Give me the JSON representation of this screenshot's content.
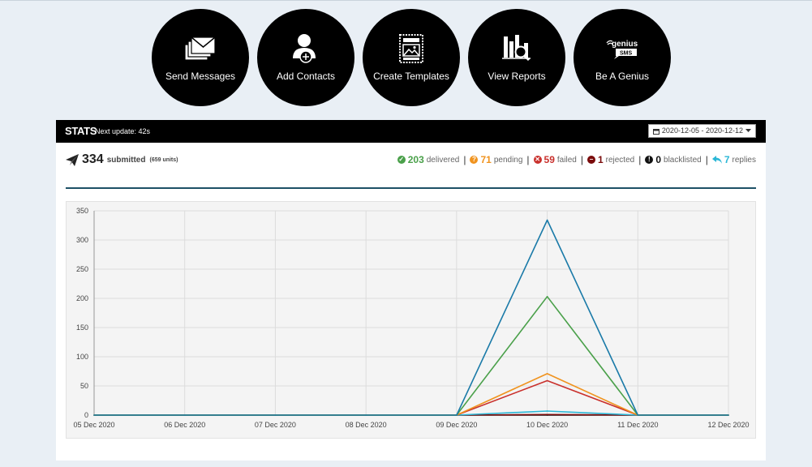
{
  "actions": [
    {
      "label": "Send Messages",
      "icon": "envelopes-icon"
    },
    {
      "label": "Add Contacts",
      "icon": "add-contact-icon"
    },
    {
      "label": "Create Templates",
      "icon": "template-icon"
    },
    {
      "label": "View Reports",
      "icon": "reports-icon"
    },
    {
      "label": "Be A Genius",
      "icon": "genius-sms-logo"
    }
  ],
  "genius_logo": {
    "line1": "genius",
    "line2": "SMS"
  },
  "stats": {
    "title": "STATS",
    "next_update": "Next update: 42s",
    "date_range": "2020-12-05 - 2020-12-12",
    "submitted_count": "334",
    "submitted_label": "submitted",
    "units": "(659 units)",
    "counts": [
      {
        "value": "203",
        "label": "delivered",
        "color": "#4aa04a",
        "icon": "check-circle-icon"
      },
      {
        "value": "71",
        "label": "pending",
        "color": "#f0931e",
        "icon": "question-circle-icon"
      },
      {
        "value": "59",
        "label": "failed",
        "color": "#c9302c",
        "icon": "times-circle-icon"
      },
      {
        "value": "1",
        "label": "rejected",
        "color": "#7a0b0b",
        "icon": "minus-circle-icon"
      },
      {
        "value": "0",
        "label": "blacklisted",
        "color": "#111111",
        "icon": "exclamation-circle-icon"
      },
      {
        "value": "7",
        "label": "replies",
        "color": "#2bb7d6",
        "icon": "reply-icon"
      }
    ]
  },
  "chart_data": {
    "type": "line",
    "x": [
      "05 Dec 2020",
      "06 Dec 2020",
      "07 Dec 2020",
      "08 Dec 2020",
      "09 Dec 2020",
      "10 Dec 2020",
      "11 Dec 2020",
      "12 Dec 2020"
    ],
    "ylim": [
      0,
      350
    ],
    "yticks": [
      0,
      50,
      100,
      150,
      200,
      250,
      300,
      350
    ],
    "grid": true,
    "series": [
      {
        "color": "#1a7aa8",
        "values": [
          0,
          0,
          0,
          0,
          0,
          334,
          0,
          0
        ]
      },
      {
        "color": "#4aa04a",
        "values": [
          0,
          0,
          0,
          0,
          0,
          203,
          0,
          0
        ]
      },
      {
        "color": "#f0931e",
        "values": [
          0,
          0,
          0,
          0,
          0,
          71,
          0,
          0
        ]
      },
      {
        "color": "#c9302c",
        "values": [
          0,
          0,
          0,
          0,
          0,
          59,
          0,
          0
        ]
      },
      {
        "color": "#7a0b0b",
        "values": [
          0,
          0,
          0,
          0,
          0,
          1,
          0,
          0
        ]
      },
      {
        "color": "#111111",
        "values": [
          0,
          0,
          0,
          0,
          0,
          0,
          0,
          0
        ]
      },
      {
        "color": "#2bb7d6",
        "values": [
          0,
          0,
          0,
          0,
          0,
          7,
          0,
          0
        ]
      }
    ]
  }
}
